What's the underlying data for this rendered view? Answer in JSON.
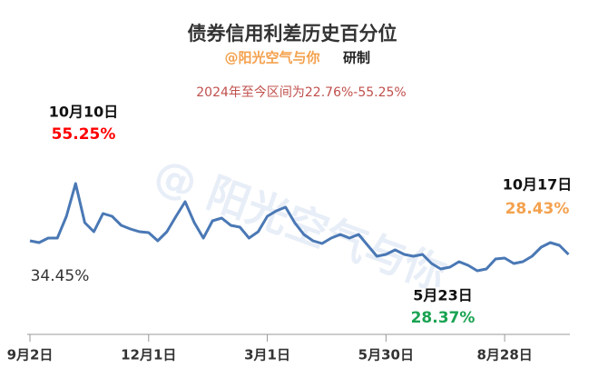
{
  "chart_data": {
    "type": "line",
    "title": "债券信用利差历史百分位",
    "subtitle_handle": "@阳光空气与你",
    "subtitle_suffix": "研制",
    "range_note": "2024年至今区间为22.76%-55.25%",
    "watermark": "@ 阳光空气与你",
    "categories": [
      "9月2日",
      null,
      null,
      null,
      null,
      null,
      null,
      null,
      null,
      null,
      null,
      null,
      null,
      "12月1日",
      null,
      null,
      null,
      null,
      null,
      null,
      null,
      null,
      null,
      null,
      null,
      null,
      "3月1日",
      null,
      null,
      null,
      null,
      null,
      null,
      null,
      null,
      null,
      null,
      null,
      null,
      "5月30日",
      null,
      null,
      null,
      null,
      null,
      null,
      null,
      null,
      null,
      null,
      null,
      null,
      "8月28日",
      null,
      null,
      null,
      null,
      null,
      null,
      null
    ],
    "series": [
      {
        "color": "#4a78b5",
        "values": [
          34.45,
          33.79,
          35.44,
          35.44,
          43.36,
          55.25,
          41.05,
          37.75,
          44.35,
          43.36,
          40.06,
          38.74,
          37.75,
          37.42,
          34.45,
          37.75,
          43.36,
          48.64,
          41.05,
          35.44,
          41.71,
          42.7,
          40.06,
          39.4,
          35.44,
          37.75,
          43.36,
          45.34,
          46.66,
          41.05,
          36.76,
          34.45,
          33.46,
          35.44,
          36.76,
          35.44,
          36.76,
          32.8,
          28.84,
          29.5,
          31.15,
          29.5,
          28.84,
          29.5,
          26.2,
          24.22,
          24.88,
          26.86,
          25.54,
          23.56,
          24.22,
          27.85,
          28.18,
          26.2,
          26.86,
          28.84,
          32.14,
          33.79,
          32.8,
          29.5
        ]
      }
    ],
    "ylim": [
      20,
      60
    ],
    "annotations": [
      {
        "date": "10月10日",
        "value": "55.25%",
        "color": "#ff0000"
      },
      {
        "date": "10月17日",
        "value": "28.43%",
        "color": "#f4a14e"
      },
      {
        "date": "5月23日",
        "value": "28.37%",
        "color": "#1aa352"
      },
      {
        "value": "34.45%",
        "color": "#333333"
      }
    ]
  }
}
